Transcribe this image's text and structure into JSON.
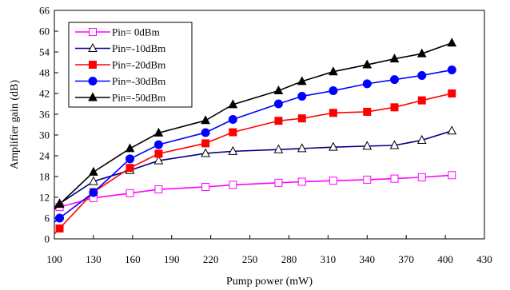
{
  "chart_data": {
    "type": "line",
    "title": "",
    "xlabel": "Pump power (mW)",
    "ylabel": "Amplifier gain (dB)",
    "xlim": [
      100,
      430
    ],
    "ylim": [
      0,
      66
    ],
    "x_ticks": [
      100,
      130,
      160,
      190,
      220,
      250,
      280,
      310,
      340,
      370,
      400,
      430
    ],
    "y_ticks": [
      0,
      6,
      12,
      18,
      24,
      30,
      36,
      42,
      48,
      54,
      60,
      66
    ],
    "grid": false,
    "legend_position": "top-left",
    "x": [
      104,
      130,
      158,
      180,
      216,
      237,
      272,
      290,
      314,
      340,
      361,
      382,
      405
    ],
    "series": [
      {
        "name": "Pin= 0dBm",
        "color": "#ff00ff",
        "marker": "square-open",
        "values": [
          9.2,
          11.8,
          13.2,
          14.3,
          15.0,
          15.6,
          16.2,
          16.5,
          16.8,
          17.1,
          17.4,
          17.8,
          18.4
        ]
      },
      {
        "name": "Pin=-10dBm",
        "color": "#000080",
        "marker": "triangle-open",
        "values": [
          10.2,
          16.6,
          19.8,
          22.6,
          24.7,
          25.3,
          25.8,
          26.1,
          26.5,
          26.8,
          27.0,
          28.5,
          31.2
        ]
      },
      {
        "name": "Pin=-20dBm",
        "color": "#ff0000",
        "marker": "square-filled",
        "values": [
          3.0,
          13.5,
          20.5,
          24.6,
          27.6,
          30.8,
          34.1,
          34.8,
          36.4,
          36.7,
          38.0,
          40.0,
          42.0
        ]
      },
      {
        "name": "Pin=-30dBm",
        "color": "#0000ff",
        "marker": "circle-filled",
        "values": [
          6.0,
          13.4,
          23.1,
          27.2,
          30.7,
          34.5,
          39.0,
          41.2,
          42.8,
          44.8,
          46.0,
          47.2,
          48.8
        ]
      },
      {
        "name": "Pin=-50dBm",
        "color": "#000000",
        "marker": "triangle-filled",
        "values": [
          10.0,
          19.3,
          26.1,
          30.6,
          34.2,
          38.8,
          42.8,
          45.5,
          48.3,
          50.3,
          52.0,
          53.5,
          56.6
        ]
      }
    ]
  }
}
